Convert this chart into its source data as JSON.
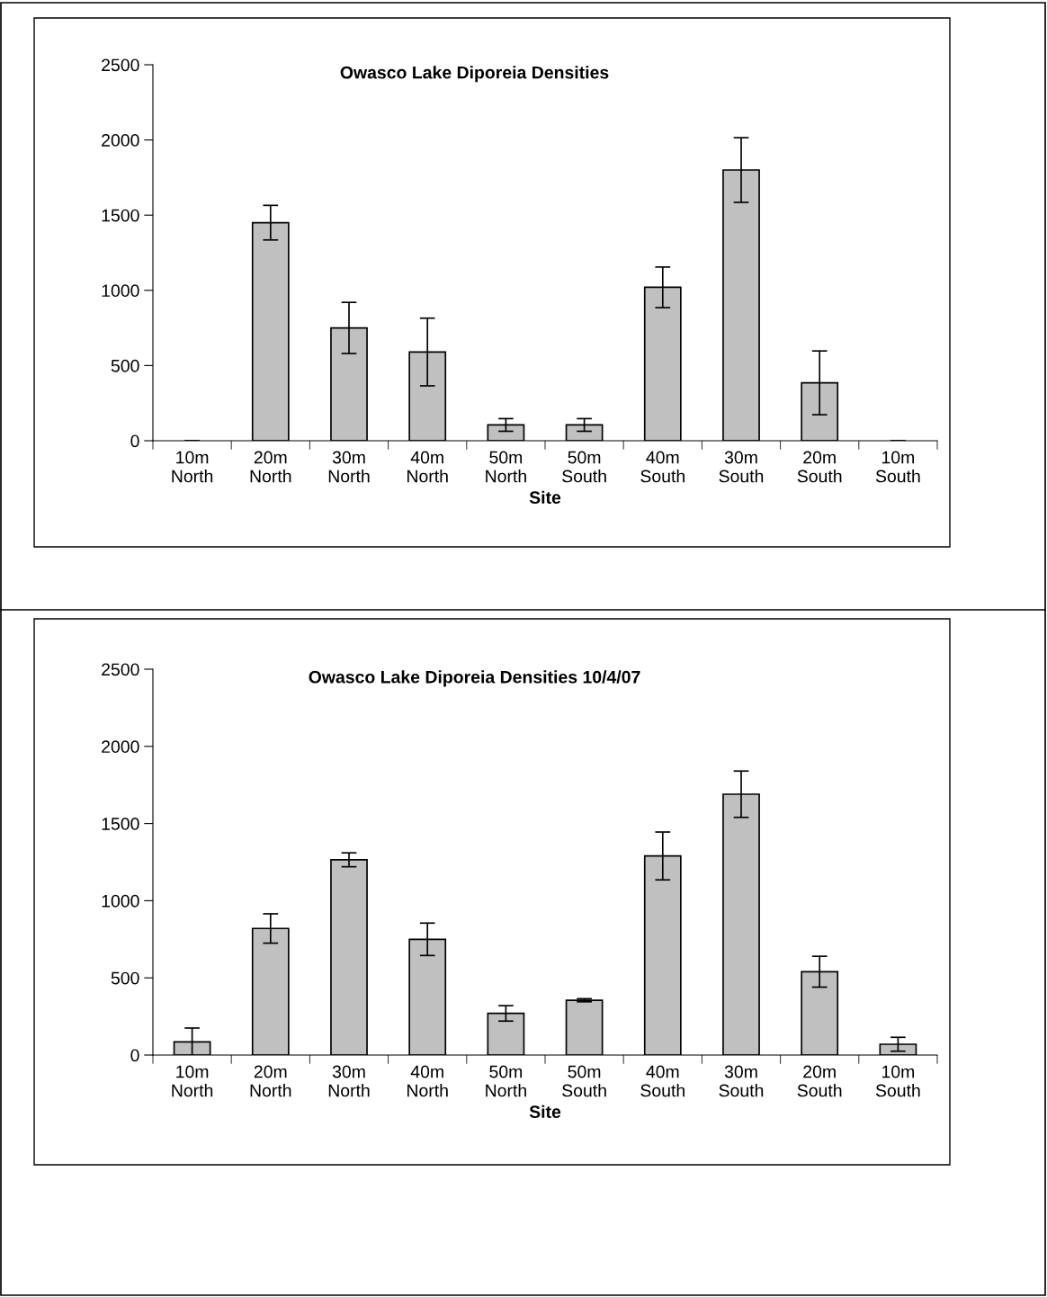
{
  "chart_data": [
    {
      "type": "bar",
      "title": "Owasco Lake Diporeia Densities",
      "xlabel": "Site",
      "categories": [
        "10m\nNorth",
        "20m\nNorth",
        "30m\nNorth",
        "40m\nNorth",
        "50m\nNorth",
        "50m\nSouth",
        "40m\nSouth",
        "30m\nSouth",
        "20m\nSouth",
        "10m\nSouth"
      ],
      "values": [
        0,
        1450,
        750,
        590,
        105,
        105,
        1020,
        1800,
        385,
        0
      ],
      "errors": [
        0,
        115,
        170,
        225,
        42,
        42,
        135,
        215,
        212,
        0
      ],
      "color": "#c0c0c0",
      "ylim": [
        0,
        2500
      ],
      "yticks": [
        0,
        500,
        1000,
        1500,
        2000,
        2500
      ],
      "grid": false,
      "legend": false
    },
    {
      "type": "bar",
      "title": "Owasco Lake Diporeia Densities 10/4/07",
      "xlabel": "Site",
      "categories": [
        "10m\nNorth",
        "20m\nNorth",
        "30m\nNorth",
        "40m\nNorth",
        "50m\nNorth",
        "50m\nSouth",
        "40m\nSouth",
        "30m\nSouth",
        "20m\nSouth",
        "10m\nSouth"
      ],
      "values": [
        85,
        820,
        1265,
        750,
        270,
        355,
        1290,
        1690,
        540,
        70
      ],
      "errors": [
        90,
        95,
        45,
        105,
        50,
        10,
        155,
        150,
        100,
        45
      ],
      "color": "#c0c0c0",
      "ylim": [
        0,
        2500
      ],
      "yticks": [
        0,
        500,
        1000,
        1500,
        2000,
        2500
      ],
      "grid": false,
      "legend": false
    }
  ]
}
